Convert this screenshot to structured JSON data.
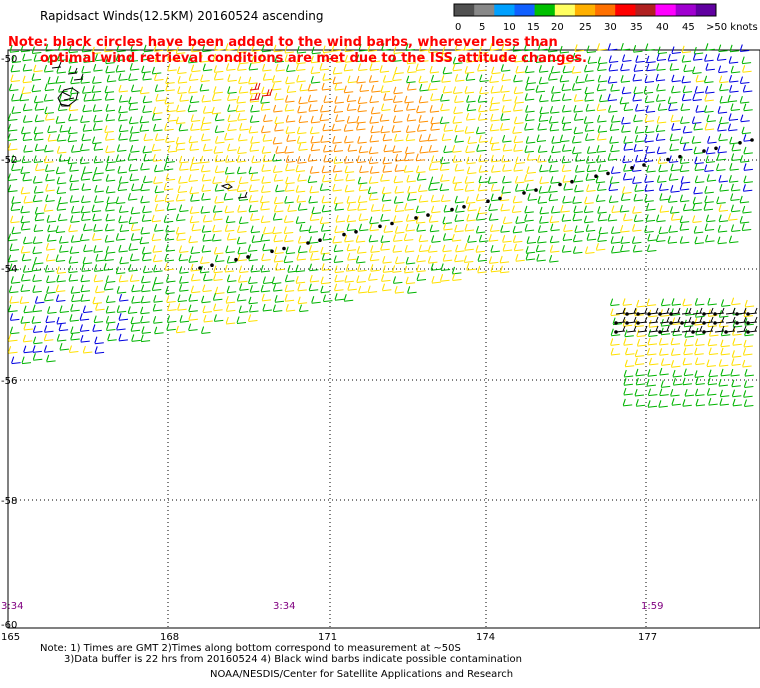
{
  "title": "Rapidsact Winds(12.5KM) 20160524 ascending",
  "note_line1": "Note: black circles have been added to the wind barbs, wherever less than",
  "note_line2": "optimal wind retrieval conditions are met due to the ISS attitude changes.",
  "legend": {
    "labels": [
      "0",
      "5",
      "10",
      "15",
      "20",
      "25",
      "30",
      "35",
      "40",
      "45",
      ">50 knots"
    ],
    "colors": [
      "#505050",
      "#888888",
      "#00a0ff",
      "#1060ff",
      "#00c000",
      "#ffff60",
      "#ffb000",
      "#ff7000",
      "#ff0000",
      "#b02020",
      "#ff00ff",
      "#a000d0",
      "#6000a0"
    ]
  },
  "lat_labels": [
    "-50",
    "-52",
    "-54",
    "-56",
    "-58",
    "-60"
  ],
  "lon_labels": [
    "165",
    "168",
    "171",
    "174",
    "177"
  ],
  "time_labels": [
    "3:34",
    "3:34",
    "1:59"
  ],
  "footer_line1": "Note: 1) Times are GMT 2)Times along bottom correspond to measurement at ~50S",
  "footer_line2": "3)Data buffer is 22 hrs from 20160524 4) Black wind barbs indicate possible contamination",
  "credit": "NOAA/NESDIS/Center for Satellite Applications and Research",
  "colors": {
    "note_red": "#ff0000",
    "time_purple": "#800080",
    "barb_green": "#00b400",
    "barb_yellow": "#ffe000",
    "barb_orange": "#ff9000",
    "barb_blue": "#0000e0",
    "barb_red": "#e00000",
    "grid": "#000000"
  }
}
